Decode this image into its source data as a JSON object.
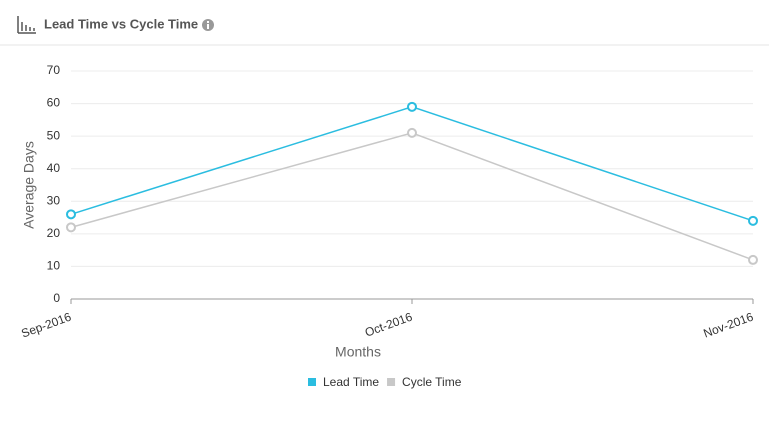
{
  "chart_data": {
    "type": "line",
    "title": "Lead Time vs Cycle Time",
    "x_label": "Months",
    "y_label": "Average Days",
    "categories": [
      "Sep-2016",
      "Oct-2016",
      "Nov-2016"
    ],
    "series": [
      {
        "name": "Lead Time",
        "color": "#2bbde0",
        "values": [
          26,
          59,
          24
        ]
      },
      {
        "name": "Cycle Time",
        "color": "#c8c8c8",
        "values": [
          22,
          51,
          12
        ]
      }
    ],
    "ylim": [
      0,
      70
    ],
    "yticks": [
      0,
      10,
      20,
      30,
      40,
      50,
      60,
      70
    ],
    "grid": true
  }
}
